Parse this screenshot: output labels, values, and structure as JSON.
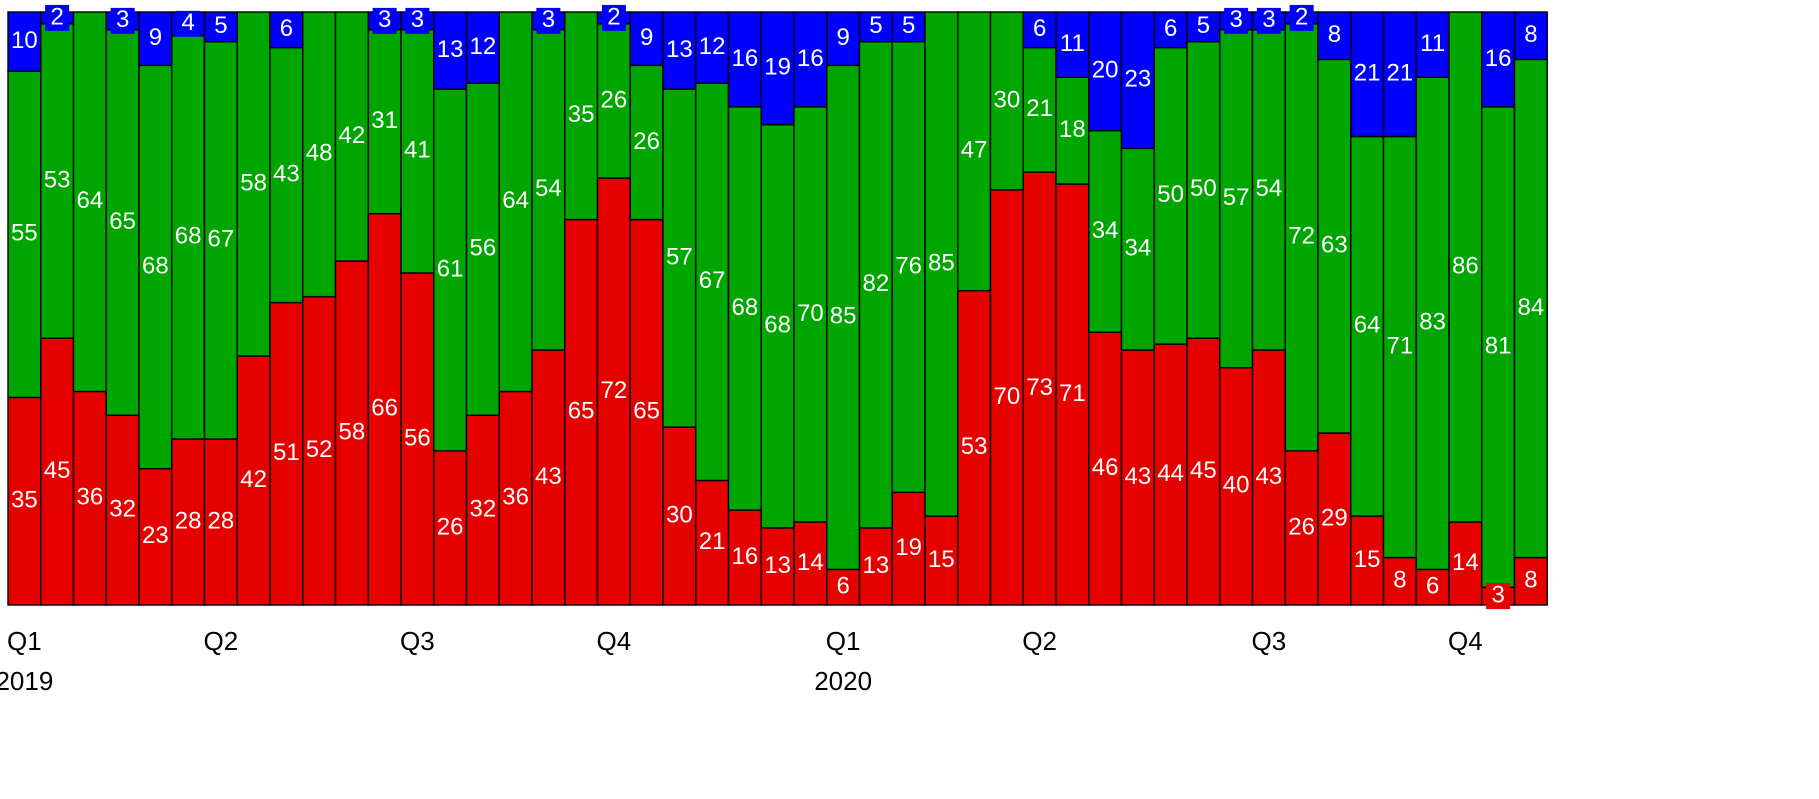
{
  "chart_data": {
    "type": "bar",
    "stacked": true,
    "normalized": true,
    "ylim": [
      0,
      100
    ],
    "grid": false,
    "legend": "none",
    "colors": {
      "bottom": "#e60000",
      "middle": "#00a600",
      "top": "#0000ff",
      "label_text": "#ffffff",
      "outline": "#000000"
    },
    "x_ticks": [
      {
        "bar_index": 0,
        "label": "Q1"
      },
      {
        "bar_index": 6,
        "label": "Q2"
      },
      {
        "bar_index": 12,
        "label": "Q3"
      },
      {
        "bar_index": 18,
        "label": "Q4"
      },
      {
        "bar_index": 25,
        "label": "Q1"
      },
      {
        "bar_index": 31,
        "label": "Q2"
      },
      {
        "bar_index": 38,
        "label": "Q3"
      },
      {
        "bar_index": 44,
        "label": "Q4"
      }
    ],
    "year_labels": [
      {
        "bar_index": 0,
        "label": "2019"
      },
      {
        "bar_index": 25,
        "label": "2020"
      }
    ],
    "series": [
      {
        "values": [
          35,
          45,
          36,
          32,
          23,
          28,
          28,
          42,
          51,
          52,
          58,
          66,
          56,
          26,
          32,
          36,
          43,
          65,
          72,
          65,
          30,
          21,
          16,
          13,
          14,
          6,
          13,
          19,
          15,
          53,
          70,
          73,
          71,
          46,
          43,
          44,
          45,
          40,
          43,
          26,
          29,
          15,
          8,
          6,
          14,
          3,
          8
        ]
      },
      {
        "values": [
          55,
          53,
          64,
          65,
          68,
          68,
          67,
          58,
          43,
          48,
          42,
          31,
          41,
          61,
          56,
          64,
          54,
          35,
          26,
          26,
          57,
          67,
          68,
          68,
          70,
          85,
          82,
          76,
          85,
          47,
          30,
          21,
          18,
          34,
          34,
          50,
          50,
          57,
          54,
          72,
          63,
          64,
          71,
          83,
          86,
          81,
          84
        ]
      },
      {
        "values": [
          10,
          2,
          0,
          3,
          9,
          4,
          5,
          0,
          6,
          0,
          0,
          3,
          3,
          13,
          12,
          0,
          3,
          0,
          2,
          9,
          13,
          12,
          16,
          19,
          16,
          9,
          5,
          5,
          0,
          0,
          0,
          6,
          11,
          20,
          23,
          6,
          5,
          3,
          3,
          2,
          8,
          21,
          21,
          11,
          0,
          16,
          8
        ]
      }
    ],
    "label_visibility": [
      [
        1,
        1,
        1,
        1,
        1,
        1,
        1,
        1,
        1,
        1,
        1,
        1,
        1,
        1,
        1,
        1,
        1,
        1,
        1,
        1,
        1,
        1,
        1,
        1,
        1,
        1,
        1,
        1,
        1,
        1,
        1,
        1,
        1,
        1,
        1,
        1,
        1,
        1,
        1,
        1,
        1,
        1,
        1,
        1,
        1,
        1,
        1
      ],
      [
        1,
        1,
        1,
        1,
        1,
        1,
        1,
        1,
        1,
        1,
        1,
        1,
        1,
        1,
        1,
        1,
        1,
        1,
        1,
        1,
        1,
        1,
        1,
        1,
        1,
        1,
        1,
        1,
        1,
        1,
        1,
        1,
        1,
        1,
        1,
        1,
        1,
        1,
        1,
        1,
        1,
        1,
        1,
        1,
        1,
        1,
        1
      ],
      [
        1,
        1,
        0,
        1,
        1,
        1,
        1,
        0,
        1,
        0,
        0,
        1,
        1,
        1,
        1,
        0,
        1,
        0,
        1,
        1,
        1,
        1,
        1,
        1,
        1,
        1,
        1,
        1,
        0,
        0,
        0,
        1,
        1,
        1,
        1,
        1,
        1,
        1,
        1,
        1,
        1,
        1,
        1,
        1,
        0,
        1,
        1
      ]
    ]
  }
}
